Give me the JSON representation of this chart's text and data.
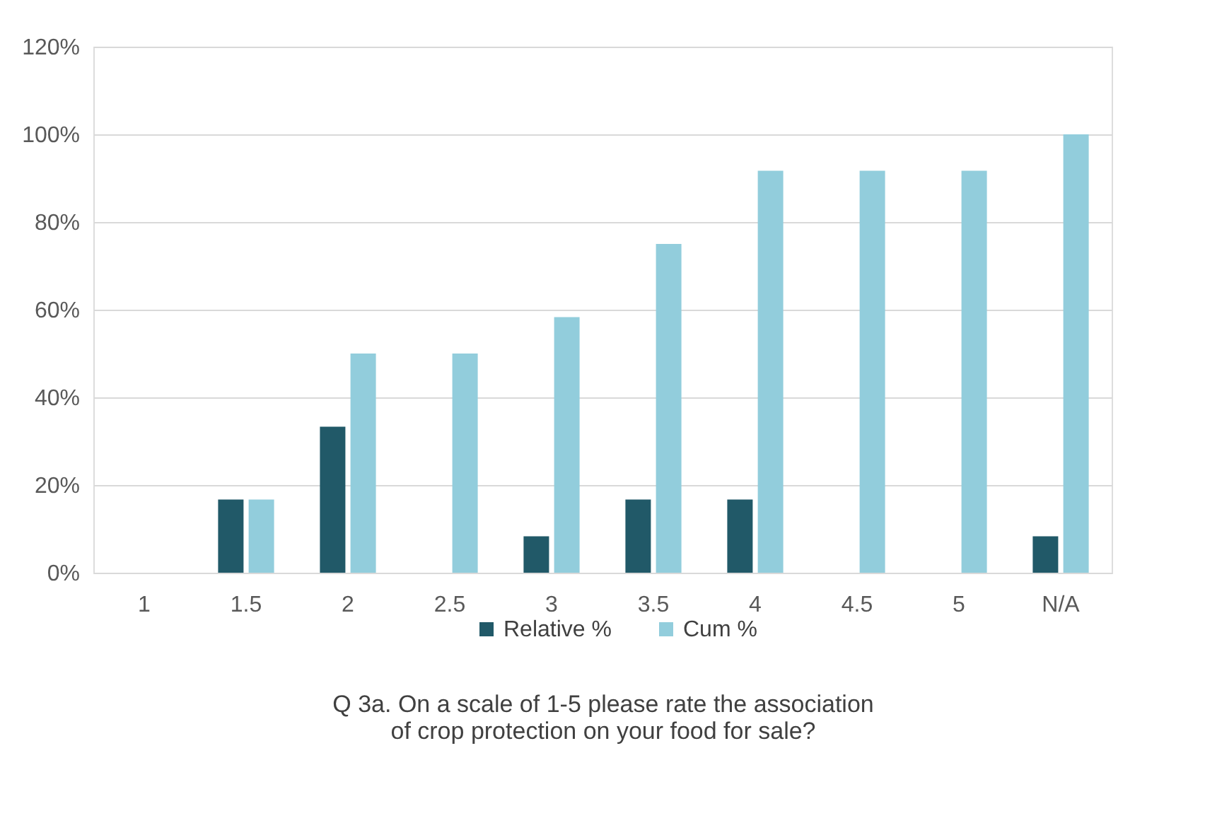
{
  "chart_data": {
    "type": "bar",
    "xlabel": "Q 3a. On a scale of 1-5 please rate the association of crop protection on your food for sale?",
    "categories": [
      "1",
      "1.5",
      "2",
      "2.5",
      "3",
      "3.5",
      "4",
      "4.5",
      "5",
      "N/A"
    ],
    "series": [
      {
        "name": "Relative %",
        "color": "#215968",
        "values": [
          0,
          16.7,
          33.3,
          0,
          8.3,
          16.7,
          16.7,
          0,
          0,
          8.3
        ]
      },
      {
        "name": "Cum %",
        "color": "#92cddc",
        "values": [
          0,
          16.7,
          50,
          50,
          58.3,
          75,
          91.7,
          91.7,
          91.7,
          100
        ]
      }
    ],
    "ylim": [
      0,
      120
    ],
    "yticks": [
      {
        "value": 0,
        "label": "0%"
      },
      {
        "value": 20,
        "label": "20%"
      },
      {
        "value": 40,
        "label": "40%"
      },
      {
        "value": 60,
        "label": "60%"
      },
      {
        "value": 80,
        "label": "80%"
      },
      {
        "value": 100,
        "label": "100%"
      },
      {
        "value": 120,
        "label": "120%"
      }
    ],
    "grid": "y",
    "legend": "bottom"
  }
}
